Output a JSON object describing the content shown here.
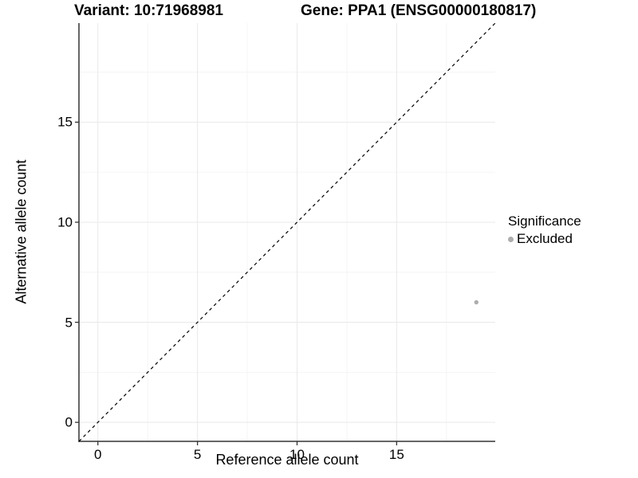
{
  "plot": {
    "titles": {
      "variant": "Variant: 10:71968981",
      "gene": "Gene: PPA1 (ENSG00000180817)"
    }
  },
  "axes": {
    "x": {
      "label": "Reference allele count",
      "ticks": [
        "0",
        "5",
        "10",
        "15"
      ]
    },
    "y": {
      "label": "Alternative allele count",
      "ticks": [
        "0",
        "5",
        "10",
        "15"
      ]
    }
  },
  "legend": {
    "title": "Significance",
    "items": [
      {
        "label": "Excluded",
        "color": "#adadad"
      }
    ]
  },
  "chart_data": {
    "type": "scatter",
    "title_left": "Variant: 10:71968981",
    "title_right": "Gene: PPA1 (ENSG00000180817)",
    "xlabel": "Reference allele count",
    "ylabel": "Alternative allele count",
    "xlim": [
      -0.95,
      19.95
    ],
    "ylim": [
      -0.95,
      19.95
    ],
    "x_ticks": [
      0,
      5,
      10,
      15
    ],
    "y_ticks": [
      0,
      5,
      10,
      15
    ],
    "x_minor": [
      2.5,
      7.5,
      12.5,
      17.5
    ],
    "y_minor": [
      2.5,
      7.5,
      12.5,
      17.5
    ],
    "grid": true,
    "legend_position": "right",
    "series": [
      {
        "name": "Excluded",
        "color": "#adadad",
        "points": [
          {
            "x": 19,
            "y": 6
          }
        ]
      }
    ],
    "reference_line": {
      "type": "y=x",
      "style": "dashed",
      "color": "#000000"
    }
  },
  "colors": {
    "background": "#ffffff",
    "axis_line": "#333333",
    "tick_mark": "#333333",
    "grid_major": "#e9e9e9",
    "grid_minor": "#f5f5f5",
    "point": "#adadad",
    "dashed_line": "#000000",
    "text": "#000000"
  }
}
